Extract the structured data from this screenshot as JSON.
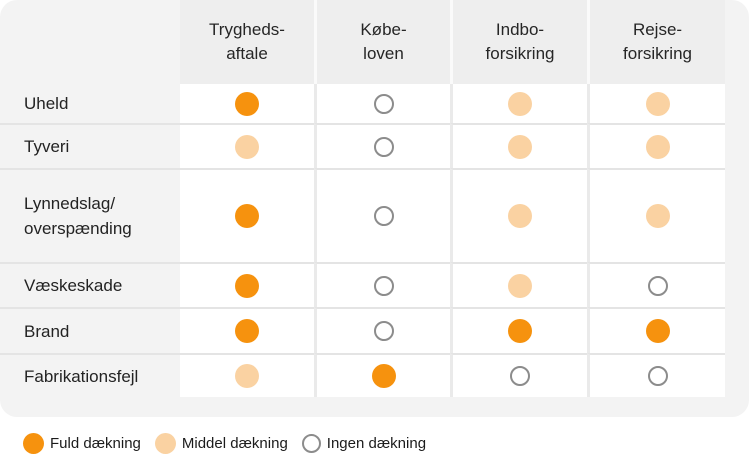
{
  "card": {
    "columns": [
      "Trygheds-\naftale",
      "Købe-\nloven",
      "Indbo-\nforsikring",
      "Rejse-\nforsikring"
    ],
    "rows": [
      {
        "label": "Uheld",
        "cells": [
          "full",
          "none",
          "middle",
          "middle"
        ]
      },
      {
        "label": "Tyveri",
        "cells": [
          "middle",
          "none",
          "middle",
          "middle"
        ]
      },
      {
        "label": "Lynnedslag/\noverspænding",
        "cells": [
          "full",
          "none",
          "middle",
          "middle"
        ]
      },
      {
        "label": "Væskeskade",
        "cells": [
          "full",
          "none",
          "middle",
          "none"
        ]
      },
      {
        "label": "Brand",
        "cells": [
          "full",
          "none",
          "full",
          "full"
        ]
      },
      {
        "label": "Fabrikationsfejl",
        "cells": [
          "middle",
          "full",
          "none",
          "none"
        ]
      }
    ]
  },
  "legend": {
    "items": [
      {
        "type": "full",
        "label": "Fuld dækning"
      },
      {
        "type": "middle",
        "label": "Middel dækning"
      },
      {
        "type": "none",
        "label": "Ingen dækning"
      }
    ]
  },
  "colors": {
    "full": "#f6920e",
    "middle": "#fad2a2",
    "none_border": "#8c8c8c"
  },
  "chart_data": {
    "type": "table",
    "title": "",
    "columns": [
      "Tryghedsaftale",
      "Købeloven",
      "Indboforsikring",
      "Rejseforsikring"
    ],
    "rows": [
      "Uheld",
      "Tyveri",
      "Lynnedslag/overspænding",
      "Væskeskade",
      "Brand",
      "Fabrikationsfejl"
    ],
    "values": [
      [
        "full",
        "none",
        "middle",
        "middle"
      ],
      [
        "middle",
        "none",
        "middle",
        "middle"
      ],
      [
        "full",
        "none",
        "middle",
        "middle"
      ],
      [
        "full",
        "none",
        "middle",
        "none"
      ],
      [
        "full",
        "none",
        "full",
        "full"
      ],
      [
        "middle",
        "full",
        "none",
        "none"
      ]
    ],
    "legend": {
      "full": "Fuld dækning",
      "middle": "Middel dækning",
      "none": "Ingen dækning"
    },
    "layout": {
      "grid": "row-and-column-separators",
      "legend_position": "bottom-left"
    }
  }
}
